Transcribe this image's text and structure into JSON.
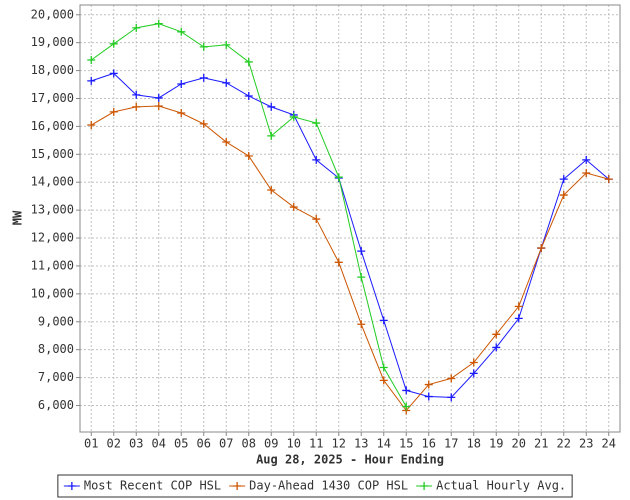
{
  "chart_data": {
    "type": "line",
    "x_label": "Aug 28, 2025 - Hour Ending",
    "y_label": "MW",
    "categories": [
      "01",
      "02",
      "03",
      "04",
      "05",
      "06",
      "07",
      "08",
      "09",
      "10",
      "11",
      "12",
      "13",
      "14",
      "15",
      "16",
      "17",
      "18",
      "19",
      "20",
      "21",
      "22",
      "23",
      "24"
    ],
    "series": [
      {
        "name": "Most Recent COP HSL",
        "color": "#1a1aff",
        "values": [
          17630,
          17900,
          17130,
          17020,
          17520,
          17740,
          17560,
          17090,
          16700,
          16410,
          14800,
          14150,
          11530,
          9050,
          6540,
          6320,
          6290,
          7150,
          8080,
          9120,
          11640,
          14110,
          14800,
          14110
        ]
      },
      {
        "name": "Day-Ahead 1430 COP HSL",
        "color": "#cc5500",
        "values": [
          16050,
          16520,
          16700,
          16730,
          16480,
          16090,
          15440,
          14940,
          13720,
          13110,
          12680,
          11130,
          8910,
          6900,
          5820,
          6750,
          6970,
          7540,
          8550,
          9550,
          11640,
          13540,
          14330,
          14110
        ]
      },
      {
        "name": "Actual Hourly Avg.",
        "color": "#22cc22",
        "values": [
          18380,
          18960,
          19530,
          19680,
          19390,
          18850,
          18920,
          18310,
          15660,
          16340,
          16120,
          14180,
          10600,
          7360,
          5960,
          null,
          null,
          null,
          null,
          null,
          null,
          null,
          null,
          null
        ]
      }
    ],
    "ylim": [
      5050,
      20350
    ],
    "yticks": [
      {
        "value": 6000,
        "label": "6,000"
      },
      {
        "value": 7000,
        "label": "7,000"
      },
      {
        "value": 8000,
        "label": "8,000"
      },
      {
        "value": 9000,
        "label": "9,000"
      },
      {
        "value": 10000,
        "label": "10,000"
      },
      {
        "value": 11000,
        "label": "11,000"
      },
      {
        "value": 12000,
        "label": "12,000"
      },
      {
        "value": 13000,
        "label": "13,000"
      },
      {
        "value": 14000,
        "label": "14,000"
      },
      {
        "value": 15000,
        "label": "15,000"
      },
      {
        "value": 16000,
        "label": "16,000"
      },
      {
        "value": 17000,
        "label": "17,000"
      },
      {
        "value": 18000,
        "label": "18,000"
      },
      {
        "value": 19000,
        "label": "19,000"
      },
      {
        "value": 20000,
        "label": "20,000"
      }
    ],
    "grid": true,
    "legend": "bottom"
  }
}
